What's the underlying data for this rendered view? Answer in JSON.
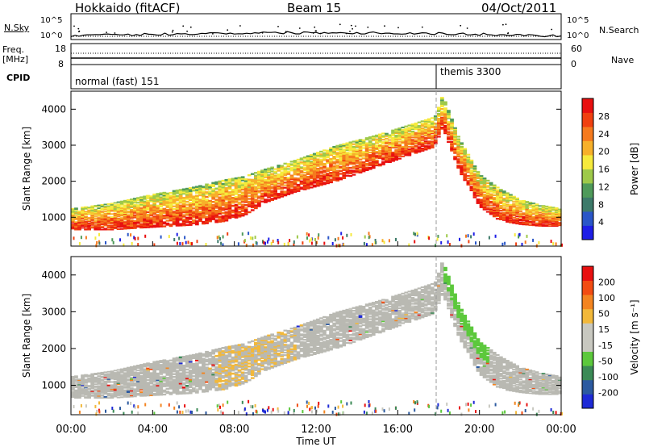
{
  "header": {
    "title": "Hokkaido (fitACF)",
    "beam": "Beam 15",
    "date": "04/Oct/2011"
  },
  "colors": {
    "power_scale": [
      "#1e1ee6",
      "#2a56c8",
      "#3d7a6a",
      "#4f9a5a",
      "#9ec94a",
      "#f6ea3c",
      "#f7b02a",
      "#f57a1e",
      "#f04010",
      "#e81010"
    ],
    "velocity_scale": [
      "#1e2ad6",
      "#2c5aa0",
      "#3b8a56",
      "#5cc83c",
      "#c8c8c0",
      "#c8c8c0",
      "#f2b83a",
      "#f38420",
      "#f24c12",
      "#e81010"
    ],
    "ground_scatter": "#b9b9b2"
  },
  "top_panels": {
    "nsky_label": "N.Sky",
    "nsky_ticks": [
      "10^5",
      "10^0"
    ],
    "nsearch_label": "N.Search",
    "nsearch_ticks": [
      "10^5",
      "10^0"
    ],
    "freq_label": "Freq.",
    "freq_unit": "[MHz]",
    "freq_ticks": [
      "18",
      "8"
    ],
    "nave_label": "Nave",
    "nave_ticks": [
      "60",
      "0"
    ],
    "cpid_label": "CPID",
    "cpid_entries": [
      {
        "text": "normal (fast) 151",
        "start_hour": 0
      },
      {
        "text": "themis 3300",
        "start_hour": 18
      }
    ]
  },
  "chart_data": [
    {
      "type": "heatmap",
      "name": "power",
      "ylabel": "Slant Range [km]",
      "yticks": [
        "4000",
        "3000",
        "2000",
        "1000"
      ],
      "ylim": [
        200,
        4500
      ],
      "xlim": [
        0,
        24
      ],
      "colorbar": {
        "label": "Power [dB]",
        "ticks": [
          "28",
          "24",
          "20",
          "16",
          "12",
          "8",
          "4"
        ],
        "range": [
          0,
          30
        ]
      },
      "echo_bands": [
        {
          "x": [
            0,
            2,
            4,
            6,
            7.5,
            8.5,
            9.5,
            11,
            13,
            15,
            17,
            17.8,
            18.2,
            19,
            20,
            21,
            22,
            23,
            24
          ],
          "y_low": [
            650,
            650,
            720,
            780,
            880,
            1050,
            1400,
            1700,
            2000,
            2400,
            2800,
            2950,
            3500,
            2300,
            1300,
            900,
            800,
            750,
            750
          ],
          "y_high": [
            1250,
            1400,
            1650,
            1850,
            2050,
            2150,
            2350,
            2600,
            3000,
            3300,
            3650,
            3800,
            4400,
            3200,
            2200,
            1800,
            1500,
            1350,
            1250
          ],
          "level": 26
        }
      ]
    },
    {
      "type": "heatmap",
      "name": "velocity",
      "ylabel": "Slant Range [km]",
      "yticks": [
        "4000",
        "3000",
        "2000",
        "1000"
      ],
      "ylim": [
        200,
        4500
      ],
      "xlim": [
        0,
        24
      ],
      "xticks": [
        "00:00",
        "04:00",
        "08:00",
        "12:00",
        "16:00",
        "20:00",
        "00:00"
      ],
      "xlabel": "Time UT",
      "colorbar": {
        "label": "Velocity [m s⁻¹]",
        "ticks": [
          "200",
          "100",
          "50",
          "15",
          "-15",
          "-50",
          "-100",
          "-200"
        ],
        "range": [
          -250,
          250
        ]
      },
      "ground_scatter": true
    }
  ]
}
